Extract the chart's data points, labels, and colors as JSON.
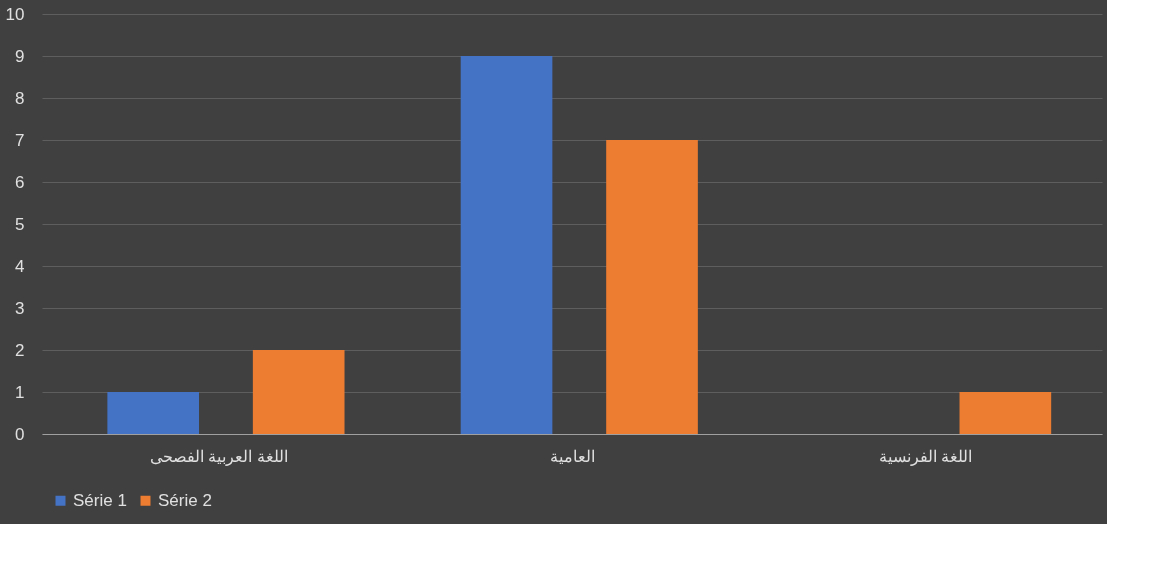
{
  "chart_data": {
    "type": "bar",
    "categories": [
      "اللغة العربية الفصحى",
      "العامية",
      "اللغة الفرنسية"
    ],
    "series": [
      {
        "name": "Série 1",
        "color": "#4472c4",
        "values": [
          1,
          9,
          0
        ]
      },
      {
        "name": "Série 2",
        "color": "#ed7d31",
        "values": [
          2,
          7,
          1
        ]
      }
    ],
    "ylim": [
      0,
      10
    ],
    "yticks": [
      0,
      1,
      2,
      3,
      4,
      5,
      6,
      7,
      8,
      9,
      10
    ],
    "grid": "y",
    "legend": "bottom"
  }
}
